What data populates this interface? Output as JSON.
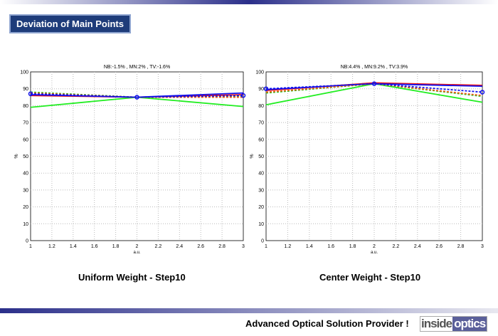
{
  "header": {
    "title": "Deviation of Main Points"
  },
  "footer": {
    "slogan": "Advanced Optical Solution Provider !",
    "logo_left": "inside",
    "logo_right": "optics"
  },
  "chart_data": [
    {
      "type": "line",
      "title": "NB:-1.5% , MN:2% , TV:-1.6%",
      "caption": "Uniform Weight - Step10",
      "xlabel": "a.u.",
      "ylabel": "%",
      "xlim": [
        1,
        3
      ],
      "ylim": [
        0,
        100
      ],
      "grid": true,
      "x": [
        1,
        2,
        3
      ],
      "xticks": [
        "1",
        "1.2",
        "1.4",
        "1.6",
        "1.8",
        "2",
        "2.2",
        "2.4",
        "2.6",
        "2.8",
        "3"
      ],
      "yticks": [
        "0",
        "10",
        "20",
        "30",
        "40",
        "50",
        "60",
        "70",
        "80",
        "90",
        "100"
      ],
      "series": [
        {
          "name": "green solid",
          "color": "#22ee22",
          "dash": false,
          "values": [
            79,
            85,
            79.5
          ]
        },
        {
          "name": "red solid",
          "color": "#ee1111",
          "dash": false,
          "values": [
            86,
            85,
            86.5
          ]
        },
        {
          "name": "blue solid",
          "color": "#1111ee",
          "dash": false,
          "values": [
            86.5,
            85,
            87.5
          ]
        },
        {
          "name": "green dashed",
          "color": "#22cc22",
          "dash": true,
          "values": [
            88,
            85,
            85.5
          ]
        },
        {
          "name": "red dashed",
          "color": "#ee5511",
          "dash": true,
          "values": [
            87.5,
            85,
            85
          ]
        },
        {
          "name": "blue dashed",
          "color": "#1111ee",
          "dash": true,
          "marker": true,
          "values": [
            87,
            85,
            86
          ]
        }
      ]
    },
    {
      "type": "line",
      "title": "NB:4.4% , MN:9.2% , TV:3.9%",
      "caption": "Center Weight - Step10",
      "xlabel": "a.u.",
      "ylabel": "%",
      "xlim": [
        1,
        3
      ],
      "ylim": [
        0,
        100
      ],
      "grid": true,
      "x": [
        1,
        2,
        3
      ],
      "xticks": [
        "1",
        "1.2",
        "1.4",
        "1.6",
        "1.8",
        "2",
        "2.2",
        "2.4",
        "2.6",
        "2.8",
        "3"
      ],
      "yticks": [
        "0",
        "10",
        "20",
        "30",
        "40",
        "50",
        "60",
        "70",
        "80",
        "90",
        "100"
      ],
      "series": [
        {
          "name": "green solid",
          "color": "#22ee22",
          "dash": false,
          "values": [
            80.5,
            93,
            82
          ]
        },
        {
          "name": "red solid",
          "color": "#ee1111",
          "dash": false,
          "values": [
            89,
            93.5,
            92
          ]
        },
        {
          "name": "blue solid",
          "color": "#1111ee",
          "dash": false,
          "values": [
            89.5,
            93,
            91.5
          ]
        },
        {
          "name": "green dashed",
          "color": "#22cc22",
          "dash": true,
          "values": [
            87.5,
            93,
            85.5
          ]
        },
        {
          "name": "red dashed",
          "color": "#ee5511",
          "dash": true,
          "values": [
            88,
            93,
            86
          ]
        },
        {
          "name": "blue dashed",
          "color": "#1111ee",
          "dash": true,
          "marker": true,
          "values": [
            90,
            93,
            88
          ]
        }
      ]
    }
  ]
}
